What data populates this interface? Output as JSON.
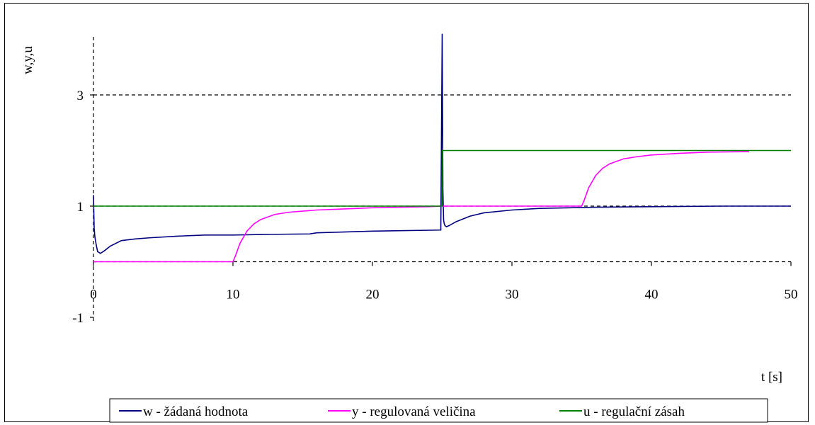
{
  "chart_data": {
    "type": "line",
    "title": "",
    "xlabel": "t [s]",
    "ylabel": "w,y,u",
    "xlim": [
      0,
      50
    ],
    "ylim": [
      -1,
      4
    ],
    "x_ticks": [
      0,
      10,
      20,
      30,
      40,
      50
    ],
    "y_ticks": [
      -1,
      1,
      3
    ],
    "gridlines_y": [
      3,
      1,
      0
    ],
    "legend_position": "bottom",
    "series": [
      {
        "name": "w - žádaná hodnota",
        "color": "#000080",
        "x": [
          0,
          0.05,
          0.1,
          0.2,
          0.3,
          0.5,
          0.8,
          1.2,
          2,
          3,
          4,
          6,
          8,
          10,
          12,
          15.5,
          16,
          20,
          24.9,
          25,
          25.05,
          25.1,
          25.15,
          25.2,
          25.3,
          25.5,
          26,
          27,
          28,
          30,
          32,
          36,
          40,
          45,
          50
        ],
        "y": [
          1.2,
          0.6,
          0.45,
          0.3,
          0.18,
          0.15,
          0.2,
          0.28,
          0.38,
          0.41,
          0.43,
          0.46,
          0.48,
          0.48,
          0.49,
          0.5,
          0.52,
          0.55,
          0.57,
          4.1,
          1.3,
          0.75,
          0.68,
          0.65,
          0.63,
          0.65,
          0.72,
          0.82,
          0.88,
          0.93,
          0.96,
          0.98,
          0.99,
          1.0,
          1.0
        ]
      },
      {
        "name": "y - regulovaná veličina",
        "color": "#ff00ff",
        "x": [
          0,
          10,
          10.2,
          10.5,
          11,
          11.5,
          12,
          13,
          14,
          15,
          16,
          18,
          20,
          22,
          24,
          25,
          30,
          35,
          35.2,
          35.5,
          36,
          36.5,
          37,
          38,
          39,
          40,
          42,
          44,
          47
        ],
        "y": [
          0,
          0,
          0.12,
          0.33,
          0.55,
          0.68,
          0.76,
          0.85,
          0.89,
          0.91,
          0.93,
          0.95,
          0.97,
          0.98,
          0.99,
          1.0,
          1.0,
          1.0,
          1.12,
          1.33,
          1.55,
          1.68,
          1.76,
          1.85,
          1.89,
          1.92,
          1.95,
          1.97,
          1.98
        ]
      },
      {
        "name": "u - regulační zásah",
        "color": "#008000",
        "x": [
          0,
          25,
          25,
          50
        ],
        "y": [
          1,
          1,
          2,
          2
        ]
      }
    ]
  }
}
